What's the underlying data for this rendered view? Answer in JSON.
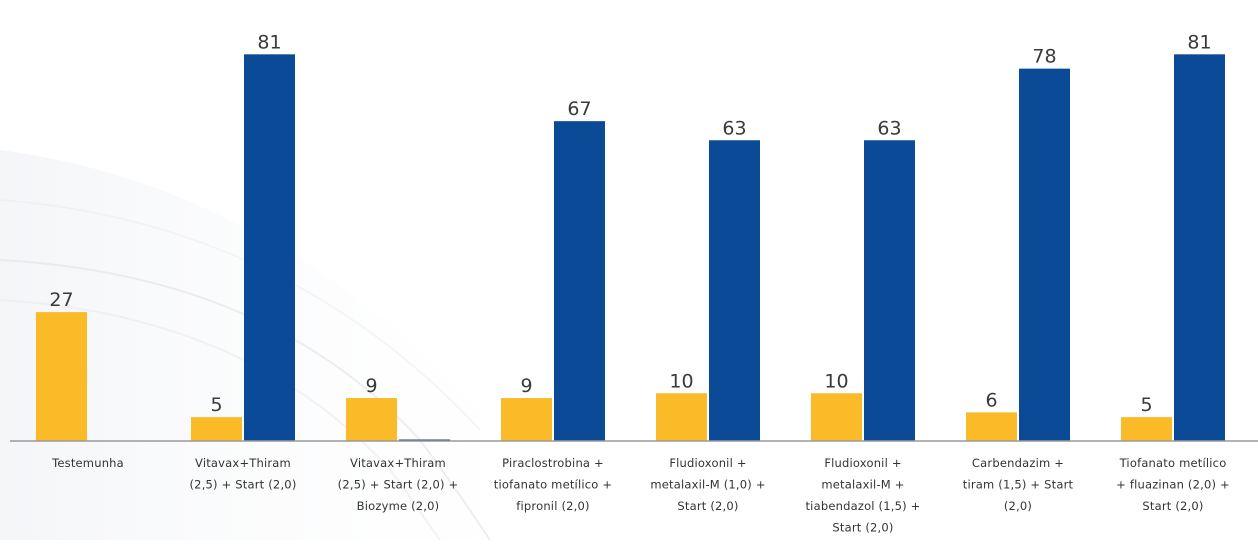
{
  "chart_data": {
    "type": "bar",
    "categories": [
      [
        "Testemunha"
      ],
      [
        "Vitavax+Thiram",
        "(2,5) + Start (2,0)"
      ],
      [
        "Vitavax+Thiram",
        "(2,5) + Start (2,0) +",
        "Biozyme (2,0)"
      ],
      [
        "Piraclostrobina +",
        "tiofanato metílico +",
        "fipronil (2,0)"
      ],
      [
        "Fludioxonil +",
        "metalaxil-M (1,0) +",
        "Start (2,0)"
      ],
      [
        "Fludioxonil +",
        "metalaxil-M +",
        "tiabendazol (1,5) +",
        "Start (2,0)"
      ],
      [
        "Carbendazim +",
        "tiram (1,5) + Start",
        "(2,0)"
      ],
      [
        "Tiofanato metílico",
        "+ fluazinan (2,0) +",
        "Start (2,0)"
      ]
    ],
    "series": [
      {
        "color": "#FBBA28",
        "values": [
          27,
          5,
          9,
          9,
          10,
          10,
          6,
          5
        ]
      },
      {
        "color": "#0A4A96",
        "values": [
          null,
          81,
          0,
          67,
          63,
          63,
          78,
          81
        ]
      }
    ],
    "data_labels": [
      [
        "27",
        "5",
        "9",
        "9",
        "10",
        "10",
        "6",
        "5"
      ],
      [
        "",
        "81",
        "",
        "67",
        "63",
        "63",
        "78",
        "81"
      ]
    ],
    "ylim": [
      0,
      84
    ],
    "title": "",
    "xlabel": "",
    "ylabel": "",
    "grid": false,
    "legend": "none"
  }
}
